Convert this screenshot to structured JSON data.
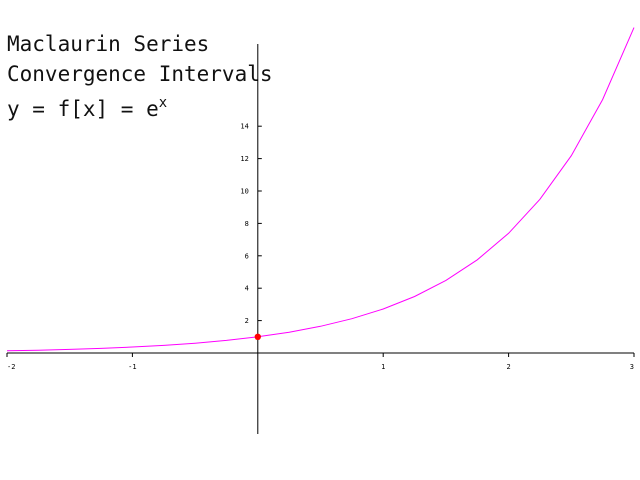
{
  "heading": {
    "line1": "Maclaurin Series",
    "line2": "Convergence Intervals",
    "line3_prefix": "y = f[x] = ",
    "line3_base": "e",
    "line3_exponent": "x"
  },
  "colors": {
    "curve": "#ff00ff",
    "point": "#ff0000",
    "axes": "#000000",
    "background": "#ffffff"
  },
  "chart_data": {
    "type": "line",
    "title": "Maclaurin Series Convergence Intervals",
    "xlabel": "",
    "ylabel": "",
    "xlim": [
      -2,
      3
    ],
    "ylim": [
      -5,
      20
    ],
    "grid": false,
    "x_ticks": [
      -2,
      -1,
      1,
      2,
      3
    ],
    "y_ticks": [
      2,
      4,
      6,
      8,
      10,
      12,
      14
    ],
    "series": [
      {
        "function": "exp",
        "x": [
          -2,
          -1.75,
          -1.5,
          -1.25,
          -1,
          -0.75,
          -0.5,
          -0.25,
          0,
          0.25,
          0.5,
          0.75,
          1,
          1.25,
          1.5,
          1.75,
          2,
          2.25,
          2.5,
          2.75,
          3
        ],
        "y": [
          0.135,
          0.174,
          0.223,
          0.287,
          0.368,
          0.472,
          0.607,
          0.779,
          1.0,
          1.284,
          1.649,
          2.117,
          2.718,
          3.49,
          4.482,
          5.755,
          7.389,
          9.488,
          12.182,
          15.643,
          20.086
        ]
      }
    ],
    "highlight_point": {
      "x": 0,
      "y": 1
    }
  }
}
